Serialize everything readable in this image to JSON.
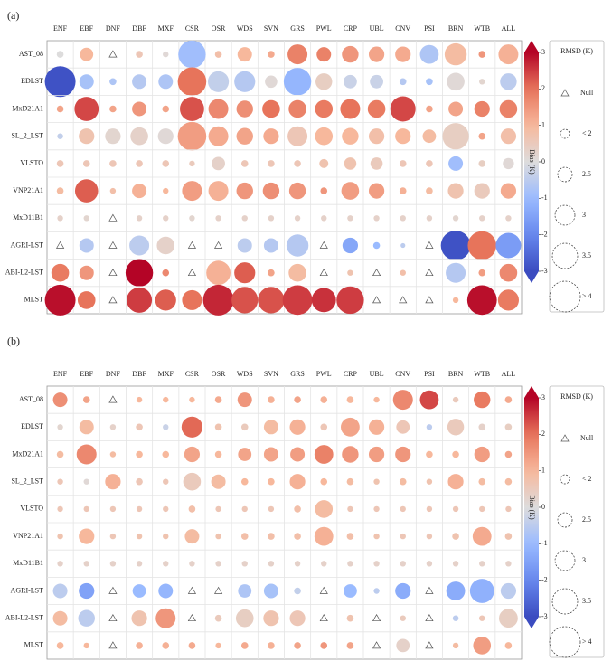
{
  "chart_data": [
    {
      "type": "bubble-matrix",
      "panel_label": "(a)",
      "columns": [
        "ENF",
        "EBF",
        "DNF",
        "DBF",
        "MXF",
        "CSR",
        "OSR",
        "WDS",
        "SVN",
        "GRS",
        "PWL",
        "CRP",
        "UBL",
        "CNV",
        "PSI",
        "BRN",
        "WTB",
        "ALL"
      ],
      "rows": [
        "AST_08",
        "EDLST",
        "MxD21A1",
        "SL_2_LST",
        "VLSTO",
        "VNP21A1",
        "MxD11B1",
        "AGRI-LST",
        "ABI-L2-LST",
        "MLST"
      ],
      "bias": [
        [
          0,
          1,
          null,
          0.6,
          0.1,
          -0.9,
          0.8,
          1,
          1.2,
          1.8,
          1.8,
          1.5,
          1.3,
          1.2,
          -0.7,
          0.9,
          1.5,
          1.1
        ],
        [
          -2.9,
          -0.8,
          -0.7,
          -0.6,
          -0.7,
          2.0,
          -0.4,
          -0.6,
          0.1,
          -1.1,
          0.4,
          -0.3,
          -0.3,
          -0.6,
          -0.8,
          0.1,
          0.2,
          -0.5
        ],
        [
          1.3,
          2.4,
          1.3,
          1.5,
          1.3,
          2.3,
          1.7,
          1.6,
          2.0,
          1.8,
          1.9,
          2.0,
          1.9,
          2.4,
          1.3,
          1.3,
          1.8,
          1.8
        ],
        [
          -0.4,
          0.7,
          0.2,
          0.3,
          0.1,
          1.4,
          1.2,
          1.3,
          1.2,
          0.6,
          1.0,
          1.0,
          0.8,
          1.0,
          0.9,
          0.4,
          1.3,
          0.8
        ],
        [
          0.6,
          0.6,
          0.6,
          0.6,
          0.6,
          0.5,
          0.3,
          0.6,
          0.6,
          0.6,
          0.7,
          0.7,
          0.5,
          0.6,
          0.6,
          -0.9,
          0.4,
          0.1
        ],
        [
          0.9,
          2.2,
          0.8,
          1.1,
          1.0,
          1.4,
          1.1,
          1.5,
          1.6,
          1.5,
          1.5,
          1.4,
          1.4,
          1.1,
          0.9,
          0.7,
          0.5,
          1.2
        ],
        [
          0.3,
          0.2,
          null,
          0.3,
          0.3,
          0.2,
          0.3,
          0.3,
          0.3,
          0.3,
          0.3,
          0.3,
          0.3,
          0.3,
          0.3,
          0.2,
          0.3,
          0.3
        ],
        [
          null,
          -0.6,
          null,
          -0.5,
          0.3,
          null,
          null,
          -0.5,
          -0.6,
          -0.6,
          null,
          -1.4,
          -1.0,
          -0.5,
          null,
          -2.9,
          2.0,
          -1.6
        ],
        [
          1.9,
          1.5,
          null,
          3.0,
          1.7,
          null,
          1.1,
          2.2,
          1.3,
          0.9,
          null,
          0.7,
          null,
          0.8,
          null,
          -0.6,
          1.4,
          1.7
        ],
        [
          2.9,
          2.0,
          null,
          2.5,
          2.2,
          2.0,
          2.7,
          2.3,
          2.3,
          2.5,
          2.6,
          2.5,
          null,
          null,
          null,
          1.0,
          2.9,
          1.9
        ]
      ],
      "rmsd": [
        [
          1.8,
          2.4,
          null,
          1.8,
          1.7,
          3.7,
          1.8,
          2.5,
          1.8,
          3.0,
          2.5,
          2.7,
          2.6,
          2.6,
          2.9,
          3.2,
          1.8,
          3.0
        ],
        [
          4.0,
          2.5,
          1.8,
          2.5,
          2.5,
          3.8,
          3.1,
          3.1,
          2.3,
          3.7,
          2.7,
          2.4,
          2.4,
          1.8,
          1.8,
          2.8,
          1.7,
          2.7
        ],
        [
          1.8,
          3.4,
          1.8,
          2.5,
          1.8,
          3.4,
          3.0,
          2.7,
          2.8,
          2.8,
          2.8,
          3.0,
          2.8,
          3.5,
          1.8,
          2.5,
          2.6,
          2.8
        ],
        [
          1.7,
          2.6,
          2.6,
          2.8,
          2.6,
          3.8,
          3.0,
          2.7,
          2.6,
          3.0,
          2.8,
          2.7,
          2.6,
          2.6,
          2.4,
          3.6,
          1.8,
          2.6
        ],
        [
          1.8,
          1.8,
          1.8,
          1.8,
          1.8,
          1.7,
          2.4,
          1.8,
          1.8,
          1.8,
          2.0,
          2.3,
          2.3,
          1.8,
          1.8,
          2.5,
          1.8,
          2.2
        ],
        [
          1.8,
          3.3,
          1.7,
          2.5,
          1.7,
          3.0,
          3.0,
          2.7,
          2.7,
          2.7,
          1.8,
          2.8,
          2.6,
          1.8,
          1.8,
          2.6,
          2.6,
          2.6
        ],
        [
          1.7,
          1.7,
          null,
          1.7,
          1.7,
          1.7,
          1.7,
          1.7,
          1.7,
          1.7,
          1.7,
          1.7,
          1.7,
          1.7,
          1.7,
          1.7,
          1.7,
          1.7
        ],
        [
          null,
          2.5,
          null,
          3.0,
          2.8,
          null,
          null,
          2.5,
          2.5,
          3.2,
          null,
          2.6,
          1.8,
          1.6,
          null,
          3.9,
          3.8,
          3.5
        ],
        [
          2.8,
          2.5,
          null,
          3.7,
          1.8,
          null,
          3.4,
          3.1,
          1.8,
          2.8,
          null,
          1.7,
          null,
          1.7,
          null,
          3.0,
          1.8,
          2.8
        ],
        [
          4.0,
          2.8,
          null,
          3.5,
          3.1,
          3.0,
          4.0,
          3.6,
          3.6,
          3.9,
          3.4,
          3.7,
          null,
          null,
          null,
          1.7,
          3.9,
          3.1
        ]
      ],
      "colorbar_label": "Bias (K)",
      "clim": [
        -3,
        3
      ],
      "cticks": [
        -3,
        -2,
        -1,
        0,
        1,
        2,
        3
      ],
      "size_legend_title": "RMSD (K)",
      "null_label": "Null",
      "size_legend": [
        {
          "value": 2,
          "label": "< 2"
        },
        2.5,
        3,
        3.5,
        {
          "value": 4,
          "label": "> 4"
        }
      ]
    },
    {
      "type": "bubble-matrix",
      "panel_label": "(b)",
      "columns": [
        "ENF",
        "EBF",
        "DNF",
        "DBF",
        "MXF",
        "CSR",
        "OSR",
        "WDS",
        "SVN",
        "GRS",
        "PWL",
        "CRP",
        "UBL",
        "CNV",
        "PSI",
        "BRN",
        "WTB",
        "ALL"
      ],
      "rows": [
        "AST_08",
        "EDLST",
        "MxD21A1",
        "SL_2_LST",
        "VLSTO",
        "VNP21A1",
        "MxD11B1",
        "AGRI-LST",
        "ABI-L2-LST",
        "MLST"
      ],
      "bias": [
        [
          1.6,
          1.3,
          null,
          1.0,
          1.0,
          1.0,
          1.2,
          1.5,
          1.1,
          1.3,
          1.1,
          1.0,
          1.0,
          1.7,
          2.4,
          0.5,
          1.9,
          1.2
        ],
        [
          0.2,
          0.9,
          0.3,
          0.6,
          -0.3,
          2.1,
          0.7,
          0.5,
          0.9,
          1.1,
          0.6,
          1.3,
          1.1,
          0.6,
          -0.5,
          0.5,
          0.3,
          0.4
        ],
        [
          0.9,
          1.7,
          0.9,
          1.0,
          1.0,
          1.3,
          1.0,
          1.3,
          1.3,
          1.4,
          1.8,
          1.5,
          1.4,
          1.5,
          1.0,
          1.0,
          1.4,
          1.3
        ],
        [
          0.6,
          0.1,
          1.1,
          0.6,
          0.6,
          0.5,
          0.9,
          1.0,
          1.0,
          1.1,
          1.0,
          0.9,
          0.7,
          0.9,
          0.7,
          1.1,
          0.9,
          0.9
        ],
        [
          0.6,
          0.6,
          0.6,
          0.6,
          0.6,
          0.8,
          0.6,
          0.6,
          0.6,
          0.8,
          0.9,
          0.6,
          0.6,
          0.6,
          0.6,
          0.6,
          0.6,
          0.6
        ],
        [
          0.7,
          1.0,
          0.6,
          0.7,
          0.7,
          0.9,
          0.7,
          0.8,
          0.8,
          0.8,
          1.1,
          0.8,
          0.7,
          0.6,
          0.6,
          0.7,
          1.2,
          0.7
        ],
        [
          0.3,
          0.3,
          0.3,
          0.3,
          0.3,
          0.3,
          0.3,
          0.3,
          0.3,
          0.3,
          0.3,
          0.3,
          0.3,
          0.3,
          0.3,
          0.3,
          0.3,
          0.3
        ],
        [
          -0.5,
          -1.5,
          null,
          -1.0,
          -1.1,
          null,
          null,
          -0.7,
          -0.8,
          -0.4,
          null,
          -1.0,
          -0.5,
          -1.3,
          null,
          -1.3,
          -1.2,
          -0.5
        ],
        [
          0.9,
          -0.5,
          null,
          0.7,
          1.5,
          null,
          0.5,
          0.4,
          0.7,
          0.6,
          null,
          0.7,
          null,
          0.5,
          null,
          -0.5,
          0.6,
          0.4
        ],
        [
          1.0,
          1.0,
          null,
          1.1,
          1.1,
          1.2,
          1.0,
          1.2,
          1.1,
          1.3,
          1.5,
          1.3,
          null,
          0.3,
          null,
          0.9,
          1.4,
          1.0
        ]
      ],
      "rmsd": [
        [
          2.5,
          1.8,
          null,
          1.7,
          1.7,
          1.7,
          1.8,
          2.5,
          1.8,
          1.8,
          1.8,
          1.8,
          1.7,
          3.0,
          2.9,
          1.7,
          2.7,
          1.8
        ],
        [
          1.7,
          2.5,
          1.7,
          1.8,
          1.7,
          3.1,
          1.8,
          1.8,
          2.5,
          2.6,
          1.8,
          2.9,
          2.6,
          2.4,
          1.7,
          2.7,
          1.8,
          1.8
        ],
        [
          1.8,
          3.0,
          1.7,
          1.8,
          1.8,
          2.6,
          1.8,
          2.4,
          2.5,
          2.5,
          2.9,
          2.7,
          2.6,
          2.6,
          1.8,
          1.8,
          2.6,
          1.8
        ],
        [
          1.7,
          1.7,
          2.6,
          1.8,
          1.7,
          2.8,
          2.5,
          1.8,
          1.8,
          2.6,
          1.8,
          1.8,
          1.7,
          1.8,
          1.7,
          2.6,
          1.8,
          1.8
        ],
        [
          1.7,
          1.7,
          1.7,
          1.7,
          1.7,
          1.8,
          1.7,
          1.7,
          1.7,
          1.8,
          2.8,
          1.7,
          1.7,
          1.7,
          1.7,
          1.7,
          1.7,
          1.7
        ],
        [
          1.7,
          2.6,
          1.7,
          1.7,
          1.7,
          2.5,
          1.7,
          1.8,
          1.8,
          1.8,
          2.9,
          1.8,
          1.7,
          1.7,
          1.7,
          1.8,
          2.9,
          1.8
        ],
        [
          1.7,
          1.7,
          1.7,
          1.7,
          1.7,
          1.7,
          1.7,
          1.7,
          1.7,
          1.7,
          1.7,
          1.7,
          1.7,
          1.7,
          1.7,
          1.7,
          1.7,
          1.7
        ],
        [
          2.5,
          2.6,
          null,
          2.4,
          2.5,
          null,
          null,
          2.4,
          2.5,
          1.8,
          null,
          2.4,
          1.7,
          2.6,
          null,
          2.9,
          3.4,
          2.6
        ],
        [
          2.5,
          2.7,
          null,
          2.6,
          3.0,
          null,
          1.8,
          2.8,
          2.6,
          2.6,
          null,
          1.8,
          null,
          1.7,
          null,
          1.7,
          1.7,
          2.9
        ],
        [
          1.8,
          1.7,
          null,
          1.8,
          1.8,
          1.8,
          1.7,
          1.8,
          1.8,
          1.8,
          1.8,
          1.8,
          null,
          2.4,
          null,
          1.7,
          2.8,
          1.8
        ]
      ],
      "colorbar_label": "Bias (K)",
      "clim": [
        -3,
        3
      ],
      "cticks": [
        -3,
        -2,
        -1,
        0,
        1,
        2,
        3
      ],
      "size_legend_title": "RMSD (K)",
      "null_label": "Null",
      "size_legend": [
        {
          "value": 2,
          "label": "< 2"
        },
        2.5,
        3,
        3.5,
        {
          "value": 4,
          "label": "> 4"
        }
      ]
    }
  ]
}
